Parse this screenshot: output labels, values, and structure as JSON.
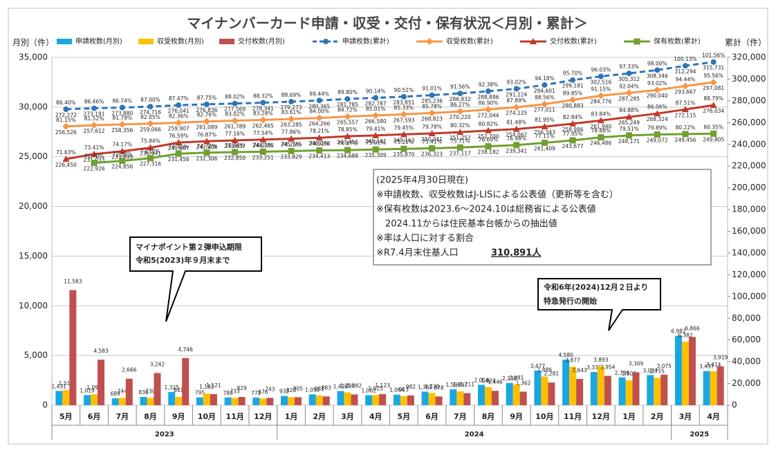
{
  "chart_data": {
    "type": "combo",
    "title": "マイナンバーカード申請・収受・交付・保有状況＜月別・累計＞",
    "y_label": "月別（件）",
    "y2_label": "累計（件）",
    "categories": [
      "5月",
      "6月",
      "7月",
      "8月",
      "9月",
      "10月",
      "11月",
      "12月",
      "1月",
      "2月",
      "3月",
      "4月",
      "5月",
      "6月",
      "7月",
      "8月",
      "9月",
      "10月",
      "11月",
      "12月",
      "1月",
      "2月",
      "3月",
      "4月"
    ],
    "category_groups": [
      {
        "label": "2023",
        "count": 8
      },
      {
        "label": "2024",
        "count": 14
      },
      {
        "label": "2025",
        "count": 2
      }
    ],
    "ylim": [
      0,
      35000
    ],
    "yticks": [
      0,
      {
        "value": 5000,
        "label": "5,000"
      },
      {
        "value": 10000,
        "label": "10,000"
      },
      {
        "value": 15000,
        "label": "15,000"
      },
      {
        "value": 20000,
        "label": "20,000"
      },
      {
        "value": 25000,
        "label": "25,000"
      },
      {
        "value": 30000,
        "label": "30,000"
      },
      {
        "value": 35000,
        "label": "35,000"
      }
    ],
    "y2lim": [
      0,
      320000
    ],
    "y2ticks": [
      0,
      {
        "value": 20000,
        "label": "20,000"
      },
      {
        "value": 40000,
        "label": "40,000"
      },
      {
        "value": 60000,
        "label": "60,000"
      },
      {
        "value": 80000,
        "label": "80,000"
      },
      {
        "value": 100000,
        "label": "100,000"
      },
      {
        "value": 120000,
        "label": "120,000"
      },
      {
        "value": 140000,
        "label": "140,000"
      },
      {
        "value": 160000,
        "label": "160,000"
      },
      {
        "value": 180000,
        "label": "180,000"
      },
      {
        "value": 200000,
        "label": "200,000"
      },
      {
        "value": 220000,
        "label": "220,000"
      },
      {
        "value": 240000,
        "label": "240,000"
      },
      {
        "value": 260000,
        "label": "260,000"
      },
      {
        "value": 280000,
        "label": "280,000"
      },
      {
        "value": 300000,
        "label": "300,000"
      },
      {
        "value": 320000,
        "label": "320,000"
      }
    ],
    "grid": true,
    "series": [
      {
        "name": "申請枚数(月別)",
        "type": "bar",
        "color": "#1aa7e1",
        "values": [
          1431,
          1019,
          689,
          836,
          1325,
          795,
          780,
          772,
          932,
          1092,
          1420,
          1002,
          1064,
          1365,
          1596,
          2054,
          2238,
          3477,
          4580,
          3336,
          2796,
          3034,
          6982,
          3437
        ],
        "value_labels": [
          "1,431",
          "1,019",
          "689",
          "836",
          "1,325",
          "795",
          "780",
          "772",
          "932",
          "1,092",
          "1,420",
          "1,002",
          "1,064",
          "1,365",
          "1,596",
          "2,054",
          "2,238",
          "3,477",
          "4,580",
          "3,336",
          "2,796",
          "3,034",
          "6,982",
          "3,437"
        ]
      },
      {
        "name": "収受枚数(月別)",
        "type": "bar",
        "color": "#ffc000",
        "values": [
          1515,
          1096,
          744,
          730,
          841,
          1182,
          733,
          676,
          820,
          981,
          1291,
          1025,
          913,
          1230,
          1397,
          1824,
          2081,
          2886,
          3877,
          3893,
          2509,
          2755,
          6382,
          3414
        ],
        "value_labels": [
          "1,515",
          "1,096",
          "744",
          "730",
          "841",
          "1,182",
          "733",
          "676",
          "820",
          "981",
          "1,291",
          "1,025",
          "913",
          "1,230",
          "1,397",
          "1,824",
          "2,081",
          "2,886",
          "3,877",
          "3,893",
          "2,509",
          "2,755",
          "6,382",
          "3,414"
        ]
      },
      {
        "name": "交付枚数(月別)",
        "type": "bar",
        "color": "#c0504d",
        "values": [
          11583,
          4583,
          2666,
          3242,
          4746,
          1121,
          829,
          743,
          805,
          883,
          1082,
          1123,
          982,
          878,
          1211,
          1446,
          1362,
          2281,
          2643,
          2954,
          3309,
          3075,
          6866,
          3919
        ],
        "value_labels": [
          "11,583",
          "4,583",
          "2,666",
          "3,242",
          "4,746",
          "1,121",
          "829",
          "743",
          "805",
          "883",
          "1,082",
          "1,123",
          "982",
          "878",
          "1,211",
          "1,446",
          "1,362",
          "2,281",
          "2,643",
          "2,954",
          "3,309",
          "3,075",
          "6,866",
          "3,919"
        ]
      },
      {
        "name": "申請枚数(累計)",
        "type": "line",
        "axis": "y2",
        "color": "#2e75b6",
        "dashed": true,
        "marker": "circle",
        "values": [
          272272,
          273191,
          273880,
          274716,
          276041,
          276836,
          277569,
          278341,
          279273,
          280365,
          281785,
          282787,
          283851,
          285236,
          286832,
          288886,
          291124,
          294601,
          299181,
          302516,
          305312,
          308346,
          312294,
          315731
        ],
        "value_labels": [
          "272,272",
          "273,191",
          "273,880",
          "274,716",
          "276,041",
          "276,836",
          "277,569",
          "278,341",
          "279,273",
          "280,365",
          "281,785",
          "282,787",
          "283,851",
          "285,236",
          "286,832",
          "288,886",
          "291,124",
          "294,601",
          "299,181",
          "302,516",
          "305,312",
          "308,346",
          "312,294",
          "315,731"
        ],
        "rate_labels": [
          "86.40%",
          "86.46%",
          "86.74%",
          "87.00%",
          "87.47%",
          "87.75%",
          "88.02%",
          "88.32%",
          "88.69%",
          "89.44%",
          "89.80%",
          "90.14%",
          "90.51%",
          "91.01%",
          "91.56%",
          "92.38%",
          "93.02%",
          "94.18%",
          "95.70%",
          "96.03%",
          "97.33%",
          "98.00%",
          "100.13%",
          "101.56%"
        ]
      },
      {
        "name": "収受枚数(累計)",
        "type": "line",
        "axis": "y2",
        "color": "#f79646",
        "marker": "diamond",
        "values": [
          256526,
          257612,
          258356,
          259066,
          259907,
          261089,
          261789,
          262465,
          263285,
          264266,
          265557,
          266580,
          267593,
          268823,
          270220,
          272044,
          274125,
          277011,
          280883,
          284776,
          287285,
          290040,
          293667,
          297081
        ],
        "value_labels": [
          "256,526",
          "257,612",
          "258,356",
          "259,066",
          "259,907",
          "261,089",
          "261,789",
          "262,465",
          "263,285",
          "264,266",
          "265,557",
          "266,580",
          "267,593",
          "268,823",
          "270,220",
          "272,044",
          "274,125",
          "277,011",
          "280,883",
          "284,776",
          "287,285",
          "290,040",
          "293,667",
          "297,081"
        ],
        "rate_labels": [
          "81.15%",
          "81.52%",
          "81.79%",
          "82.05%",
          "82.36%",
          "82.76%",
          "83.02%",
          "83.28%",
          "83.61%",
          "84.00%",
          "84.72%",
          "85.01%",
          "85.33%",
          "85.78%",
          "86.27%",
          "86.90%",
          "87.89%",
          "88.56%",
          "89.85%",
          "91.15%",
          "92.04%",
          "93.02%",
          "94.44%",
          "95.56%"
        ]
      },
      {
        "name": "交付枚数(累計)",
        "type": "line",
        "axis": "y2",
        "color": "#c0392b",
        "marker": "triangle",
        "values": [
          226450,
          231033,
          233699,
          236941,
          241687,
          242808,
          243637,
          244380,
          245185,
          246068,
          247456,
          248181,
          249163,
          250041,
          251252,
          252700,
          254062,
          256343,
          258986,
          261940,
          265249,
          268324,
          272115,
          276034
        ],
        "value_labels": [
          "226,450",
          "231,033",
          "233,699",
          "236,941",
          "241,687",
          "242,808",
          "243,637",
          "244,380",
          "245,185",
          "246,068",
          "247,456",
          "248,181",
          "249,163",
          "250,041",
          "251,252",
          "252,700",
          "254,062",
          "256,343",
          "258,986",
          "261,940",
          "265,249",
          "268,324",
          "272,115",
          "276,034"
        ],
        "rate_labels": [
          "71.63%",
          "73.41%",
          "74.17%",
          "75.84%",
          "76.59%",
          "76.87%",
          "77.16%",
          "77.54%",
          "77.86%",
          "78.21%",
          "78.85%",
          "79.41%",
          "79.45%",
          "79.78%",
          "80.32%",
          "80.82%",
          "81.48%",
          "81.95%",
          "82.84%",
          "83.84%",
          "84.88%",
          "86.06%",
          "87.51%",
          "88.79%"
        ]
      },
      {
        "name": "保有枚数(累計)",
        "type": "line",
        "axis": "y2",
        "color": "#70a030",
        "marker": "square",
        "values": [
          null,
          222926,
          224856,
          227316,
          231456,
          232306,
          232850,
          233251,
          233829,
          234413,
          234688,
          235309,
          235870,
          236323,
          237117,
          238182,
          239341,
          241409,
          243677,
          246486,
          248171,
          249072,
          249456,
          249805
        ],
        "value_labels": [
          null,
          "222,926",
          "224,856",
          "227,316",
          "231,456",
          "232,306",
          "232,850",
          "233,251",
          "233,829",
          "234,413",
          "234,688",
          "235,309",
          "235,870",
          "236,323",
          "237,117",
          "238,182",
          "239,341",
          "241,409",
          "243,677",
          "246,486",
          "248,171",
          "249,072",
          "249,456",
          "249,805"
        ],
        "rate_labels": [
          null,
          "71.70%",
          "72.33%",
          "73.12%",
          "74.45%",
          "74.72%",
          "75.84%",
          "74.01%",
          "74.25%",
          "74.51%",
          "74.87%",
          "75.01%",
          "75.21%",
          "75.41%",
          "75.71%",
          "76.69%",
          "76.98%",
          "77.11%",
          "77.95%",
          "78.88%",
          "79.51%",
          "79.89%",
          "80.22%",
          "80.35%"
        ]
      }
    ],
    "note_box": [
      "(2025年4月30日現在)",
      "※申請枚数、収受枚数はJ-LISによる公表値（更新等を含む）",
      "※保有枚数は2023.6～2024.10は総務省による公表値",
      "　2024.11からは住民基本台帳からの抽出値",
      "※率は人口に対する割合",
      "※R7.4月末住基人口",
      "310,891人"
    ],
    "callouts": [
      [
        "マイナポイント第２弾申込期限",
        "令和5(2023)年９月末まで"
      ],
      [
        "令和6年(2024)12月２日より",
        "特急発行の開始"
      ]
    ]
  }
}
